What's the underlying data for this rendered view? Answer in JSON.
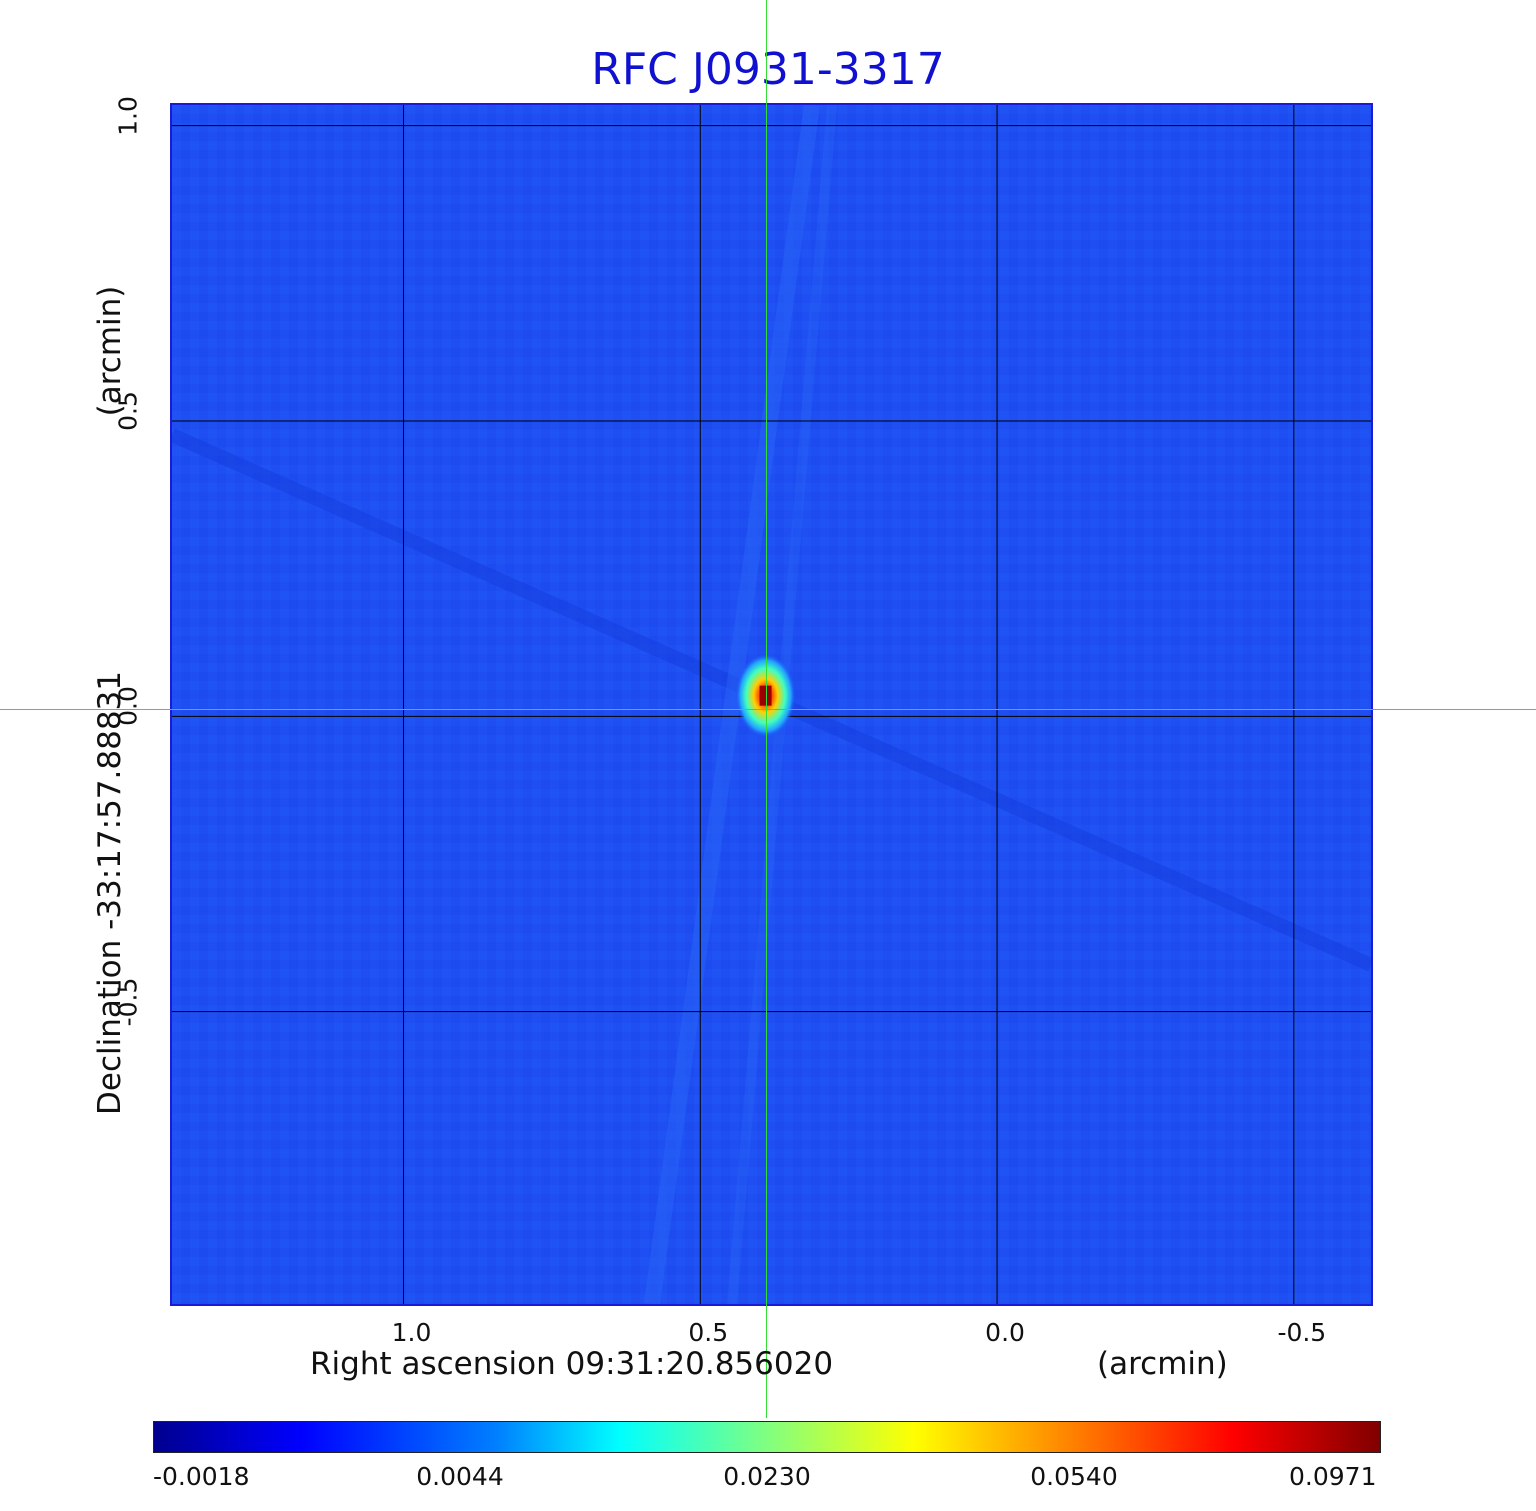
{
  "chart_data": {
    "type": "heatmap",
    "title": "RFC J0931-3317",
    "xlabel": "Right ascension  09:31:20.856020",
    "xunit": "(arcmin)",
    "ylabel": "Declination  -33:17:57.88831",
    "yunit": "(arcmin)",
    "xlim": [
      1.39,
      -0.63
    ],
    "ylim": [
      -0.995,
      1.035
    ],
    "x_ticks": [
      "1.0",
      "0.5",
      "0.0",
      "-0.5"
    ],
    "x_tick_values": [
      1.0,
      0.5,
      0.0,
      -0.5
    ],
    "y_ticks": [
      "1.0",
      "0.5",
      "0.0",
      "-0.5"
    ],
    "y_tick_values": [
      1.0,
      0.5,
      0.0,
      -0.5
    ],
    "grid": true,
    "crosshair": {
      "x": 0.39,
      "y": 0.035
    },
    "peak": {
      "x": 0.39,
      "y": 0.035,
      "value": 0.0971
    },
    "colorbar": {
      "ticks": [
        "-0.0018",
        "0.0044",
        "0.0230",
        "0.0540",
        "0.0971"
      ],
      "min": -0.0018,
      "max": 0.0971,
      "colormap": "jet"
    },
    "colors": {
      "title": "#1010d0",
      "background": "#1f4ff2",
      "crosshair": "#33dd33",
      "grid": "#000000"
    }
  }
}
